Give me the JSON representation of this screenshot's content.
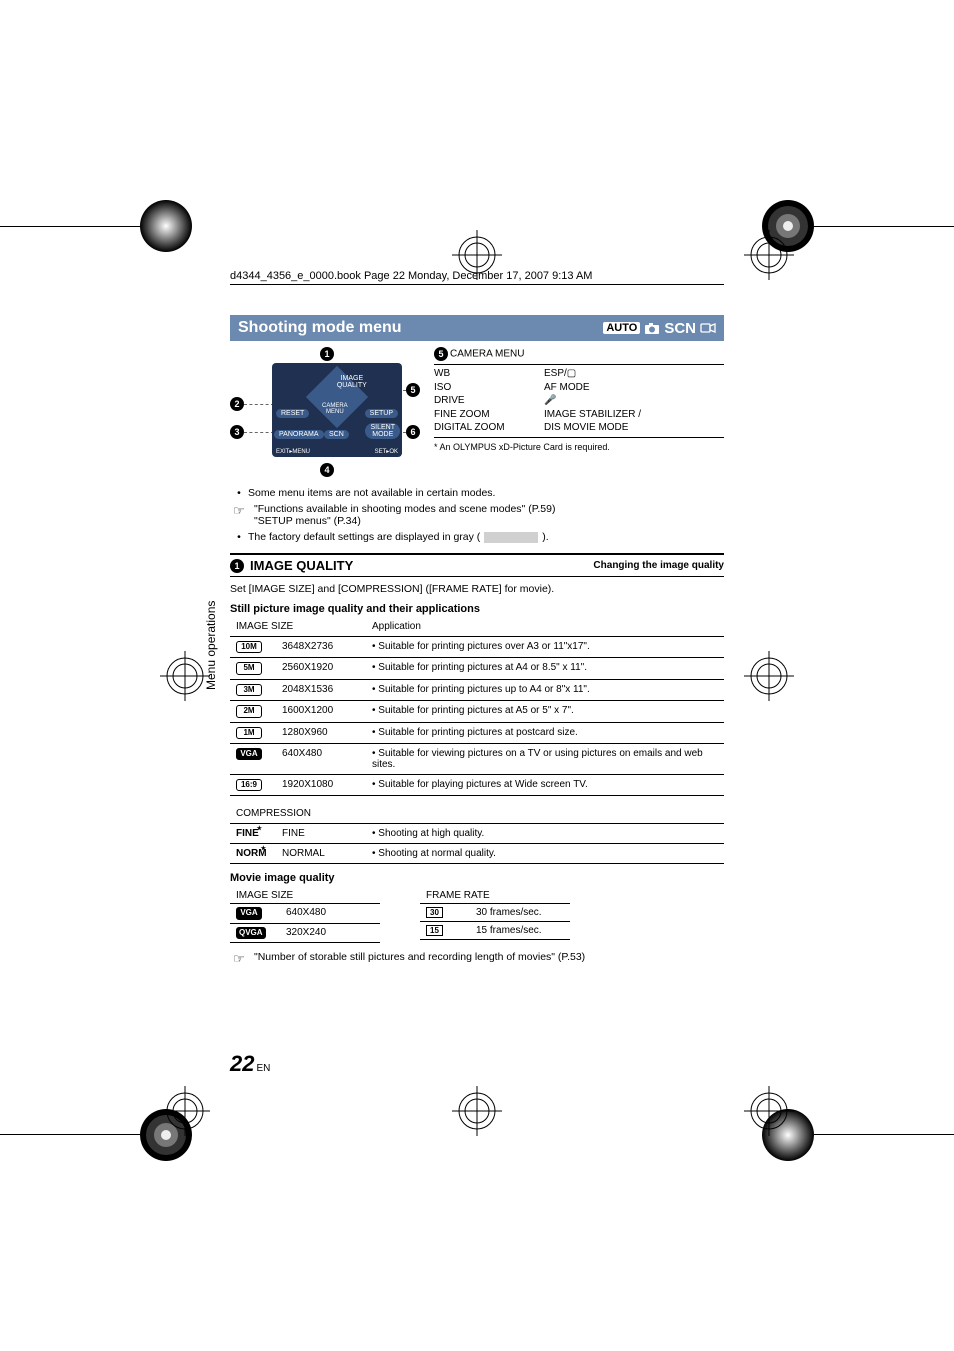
{
  "file_path": "d4344_4356_e_0000.book  Page 22  Monday, December 17, 2007  9:13 AM",
  "title": "Shooting mode menu",
  "mode_bar": {
    "auto": "AUTO",
    "scn": "SCN"
  },
  "camera_menu": {
    "heading": "CAMERA MENU",
    "left": [
      "WB",
      "ISO",
      "DRIVE",
      "FINE ZOOM",
      "DIGITAL ZOOM"
    ],
    "right": [
      "ESP/▢",
      "AF MODE",
      "🎤",
      "IMAGE STABILIZER /",
      "DIS MOVIE MODE"
    ],
    "footnote": "* An OLYMPUS xD-Picture Card is required."
  },
  "diagram": {
    "center_top": "IMAGE\nQUALITY",
    "center_mid": "CAMERA\nMENU",
    "left": "RESET",
    "right": "SETUP",
    "bl": "PANORAMA",
    "bm": "SCN",
    "br": "SILENT\nMODE",
    "exit": "EXIT▸MENU",
    "set": "SET▸OK"
  },
  "notes": {
    "n1": "Some menu items are not available in certain modes.",
    "n2a": "\"Functions available in shooting modes and scene modes\" (P.59)",
    "n2b": "\"SETUP menus\" (P.34)",
    "n3a": "The factory default settings are displayed in gray (",
    "n3b": ")."
  },
  "section1": {
    "num": "1",
    "title": "IMAGE QUALITY",
    "right": "Changing the image quality"
  },
  "desc": "Set [IMAGE SIZE] and [COMPRESSION] ([FRAME RATE] for movie).",
  "still_head": "Still picture image quality and their applications",
  "size_table": {
    "h1": "IMAGE SIZE",
    "h2": "Application",
    "rows": [
      {
        "badge": "10M",
        "size": "3648X2736",
        "app": "Suitable for printing pictures over A3 or 11\"x17\"."
      },
      {
        "badge": "5M",
        "size": "2560X1920",
        "app": "Suitable for printing pictures at A4 or 8.5\" x 11\"."
      },
      {
        "badge": "3M",
        "size": "2048X1536",
        "app": "Suitable for printing pictures up to A4 or 8\"x 11\"."
      },
      {
        "badge": "2M",
        "size": "1600X1200",
        "app": "Suitable for printing pictures at A5 or 5\" x 7\"."
      },
      {
        "badge": "1M",
        "size": "1280X960",
        "app": "Suitable for printing pictures at postcard size."
      },
      {
        "badge": "VGA",
        "inv": true,
        "size": "640X480",
        "app": "Suitable for viewing pictures on a TV or using pictures on emails and web sites."
      },
      {
        "badge": "16:9",
        "size": "1920X1080",
        "app": "Suitable for playing pictures at Wide screen TV."
      }
    ]
  },
  "compression": {
    "head": "COMPRESSION",
    "rows": [
      {
        "icon": "FINE",
        "label": "FINE",
        "app": "Shooting at high quality."
      },
      {
        "icon": "NORM",
        "label": "NORMAL",
        "app": "Shooting at normal quality."
      }
    ]
  },
  "movie_head": "Movie image quality",
  "movie_size": {
    "head": "IMAGE SIZE",
    "rows": [
      {
        "badge": "VGA",
        "inv": true,
        "val": "640X480"
      },
      {
        "badge": "QVGA",
        "inv": true,
        "val": "320X240"
      }
    ]
  },
  "frame_rate": {
    "head": "FRAME RATE",
    "rows": [
      {
        "badge": "30",
        "val": "30 frames/sec."
      },
      {
        "badge": "15",
        "val": "15 frames/sec."
      }
    ]
  },
  "ref": "\"Number of storable still pictures and recording length of movies\" (P.53)",
  "side_label": "Menu operations",
  "page": "22",
  "page_suffix": "EN",
  "colors": {
    "title_bg": "#6c8ab0",
    "screen_bg": "#203050"
  }
}
